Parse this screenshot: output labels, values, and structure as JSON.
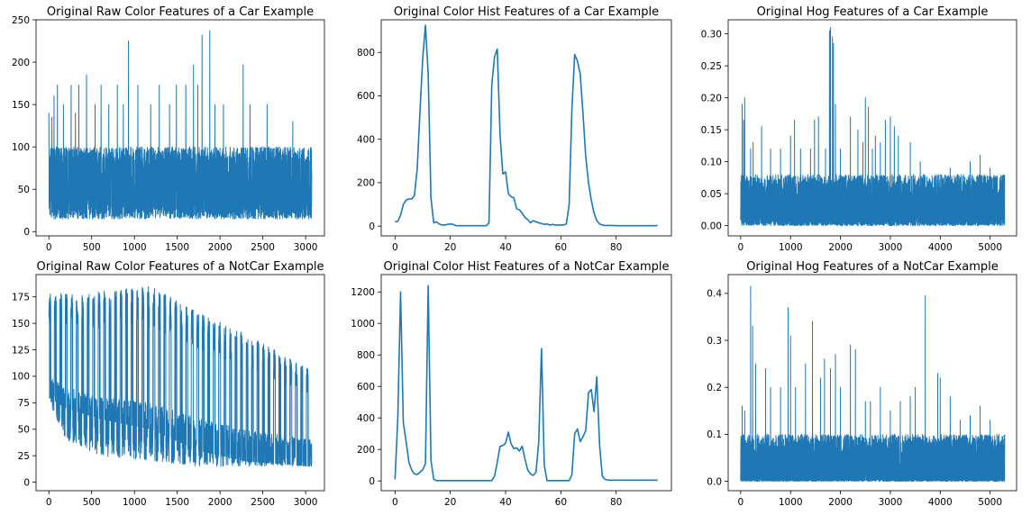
{
  "chart_data": [
    {
      "type": "line",
      "title": "Original Raw Color Features of a Car Example",
      "xlabel": "",
      "ylabel": "",
      "xlim": [
        -150,
        3220
      ],
      "ylim": [
        -5,
        250
      ],
      "xticks": [
        0,
        500,
        1000,
        1500,
        2000,
        2500,
        3000
      ],
      "yticks": [
        0,
        50,
        100,
        150,
        200,
        250
      ],
      "color": "#1f77b4",
      "profile": {
        "n": 3072,
        "base_low": [
          15,
          30
        ],
        "base_high": [
          80,
          100
        ],
        "mid": 58
      },
      "peaks": [
        [
          0,
          140
        ],
        [
          35,
          135
        ],
        [
          60,
          160
        ],
        [
          100,
          173
        ],
        [
          170,
          150
        ],
        [
          260,
          173
        ],
        [
          310,
          140
        ],
        [
          350,
          173
        ],
        [
          440,
          185
        ],
        [
          540,
          150
        ],
        [
          610,
          173
        ],
        [
          700,
          150
        ],
        [
          800,
          173
        ],
        [
          870,
          150
        ],
        [
          930,
          225
        ],
        [
          1040,
          173
        ],
        [
          1190,
          150
        ],
        [
          1290,
          173
        ],
        [
          1410,
          150
        ],
        [
          1490,
          173
        ],
        [
          1600,
          173
        ],
        [
          1690,
          197
        ],
        [
          1740,
          173
        ],
        [
          1790,
          232
        ],
        [
          1880,
          237
        ],
        [
          1940,
          150
        ],
        [
          2040,
          150
        ],
        [
          2270,
          197
        ],
        [
          2350,
          150
        ],
        [
          2550,
          150
        ],
        [
          2850,
          130
        ]
      ]
    },
    {
      "type": "line",
      "title": "Original Color Hist Features of a Car Example",
      "xlabel": "",
      "ylabel": "",
      "xlim": [
        -5,
        100
      ],
      "ylim": [
        -45,
        950
      ],
      "xticks": [
        0,
        20,
        40,
        60,
        80
      ],
      "yticks": [
        0,
        200,
        400,
        600,
        800
      ],
      "color": "#1f77b4",
      "x": [
        0,
        1,
        2,
        3,
        4,
        5,
        6,
        7,
        8,
        9,
        10,
        11,
        12,
        13,
        14,
        15,
        16,
        17,
        18,
        19,
        20,
        21,
        22,
        23,
        24,
        25,
        26,
        27,
        28,
        29,
        30,
        31,
        32,
        33,
        34,
        35,
        36,
        37,
        38,
        39,
        40,
        41,
        42,
        43,
        44,
        45,
        46,
        47,
        48,
        49,
        50,
        51,
        52,
        53,
        54,
        55,
        56,
        57,
        58,
        59,
        60,
        61,
        62,
        63,
        64,
        65,
        66,
        67,
        68,
        69,
        70,
        71,
        72,
        73,
        74,
        75,
        76,
        77,
        78,
        79,
        80,
        81,
        82,
        83,
        84,
        85,
        86,
        87,
        88,
        89,
        90,
        91,
        92,
        93,
        94,
        95
      ],
      "y": [
        20,
        22,
        50,
        100,
        120,
        125,
        125,
        140,
        260,
        520,
        770,
        925,
        700,
        130,
        15,
        20,
        10,
        5,
        5,
        8,
        10,
        8,
        2,
        2,
        2,
        2,
        2,
        2,
        2,
        2,
        2,
        2,
        2,
        2,
        15,
        650,
        780,
        815,
        420,
        240,
        250,
        150,
        135,
        130,
        80,
        75,
        60,
        40,
        30,
        15,
        25,
        20,
        15,
        12,
        8,
        10,
        5,
        8,
        5,
        5,
        5,
        5,
        10,
        100,
        540,
        790,
        760,
        700,
        520,
        320,
        200,
        120,
        60,
        25,
        10,
        5,
        3,
        3,
        3,
        3,
        2,
        2,
        2,
        2,
        2,
        2,
        2,
        2,
        2,
        2,
        2,
        2,
        2,
        2,
        2,
        3
      ]
    },
    {
      "type": "line",
      "title": "Original Hog Features of a Car Example",
      "xlabel": "",
      "ylabel": "",
      "xlim": [
        -250,
        5530
      ],
      "ylim": [
        -0.016,
        0.322
      ],
      "xticks": [
        0,
        1000,
        2000,
        3000,
        4000,
        5000
      ],
      "yticks": [
        0.0,
        0.05,
        0.1,
        0.15,
        0.2,
        0.25,
        0.3
      ],
      "color": "#1f77b4",
      "profile": {
        "n": 5292,
        "base_low": [
          0,
          0.01
        ],
        "base_high": [
          0.04,
          0.08
        ],
        "mid": 0.03
      },
      "peaks": [
        [
          30,
          0.19
        ],
        [
          60,
          0.165
        ],
        [
          80,
          0.2
        ],
        [
          200,
          0.12
        ],
        [
          250,
          0.13
        ],
        [
          420,
          0.155
        ],
        [
          600,
          0.12
        ],
        [
          800,
          0.12
        ],
        [
          1000,
          0.14
        ],
        [
          1080,
          0.165
        ],
        [
          1200,
          0.12
        ],
        [
          1400,
          0.12
        ],
        [
          1480,
          0.165
        ],
        [
          1560,
          0.17
        ],
        [
          1700,
          0.12
        ],
        [
          1780,
          0.305
        ],
        [
          1800,
          0.31
        ],
        [
          1840,
          0.295
        ],
        [
          1860,
          0.285
        ],
        [
          1900,
          0.19
        ],
        [
          2000,
          0.12
        ],
        [
          2200,
          0.17
        ],
        [
          2350,
          0.15
        ],
        [
          2450,
          0.13
        ],
        [
          2500,
          0.2
        ],
        [
          2560,
          0.185
        ],
        [
          2640,
          0.12
        ],
        [
          2700,
          0.14
        ],
        [
          2800,
          0.13
        ],
        [
          2900,
          0.165
        ],
        [
          3000,
          0.17
        ],
        [
          3080,
          0.155
        ],
        [
          3160,
          0.14
        ],
        [
          3400,
          0.13
        ],
        [
          3600,
          0.1
        ],
        [
          3800,
          0.07
        ],
        [
          4000,
          0.08
        ],
        [
          4200,
          0.09
        ],
        [
          4350,
          0.08
        ],
        [
          4600,
          0.1
        ],
        [
          4800,
          0.11
        ],
        [
          5000,
          0.09
        ],
        [
          5200,
          0.07
        ]
      ]
    },
    {
      "type": "line",
      "title": "Original Raw Color Features of a NotCar Example",
      "xlabel": "",
      "ylabel": "",
      "xlim": [
        -150,
        3220
      ],
      "ylim": [
        -8,
        196
      ],
      "xticks": [
        0,
        500,
        1000,
        1500,
        2000,
        2500,
        3000
      ],
      "yticks": [
        0,
        25,
        50,
        75,
        100,
        125,
        150,
        175
      ],
      "color": "#1f77b4",
      "profile": {
        "n": 3072,
        "period": 64,
        "segments": [
          [
            0,
            80,
            178,
            75,
            100
          ],
          [
            200,
            70,
            178,
            40,
            90
          ],
          [
            600,
            60,
            180,
            25,
            80
          ],
          [
            1200,
            50,
            185,
            20,
            75
          ],
          [
            1750,
            30,
            160,
            15,
            60
          ],
          [
            2300,
            20,
            140,
            15,
            50
          ],
          [
            3072,
            15,
            105,
            15,
            40
          ]
        ]
      }
    },
    {
      "type": "line",
      "title": "Original Color Hist Features of a NotCar Example",
      "xlabel": "",
      "ylabel": "",
      "xlim": [
        -5,
        100
      ],
      "ylim": [
        -62,
        1310
      ],
      "xticks": [
        0,
        20,
        40,
        60,
        80
      ],
      "yticks": [
        0,
        200,
        400,
        600,
        800,
        1000,
        1200
      ],
      "color": "#1f77b4",
      "x": [
        0,
        1,
        2,
        3,
        4,
        5,
        6,
        7,
        8,
        9,
        10,
        11,
        12,
        13,
        14,
        15,
        16,
        17,
        18,
        19,
        20,
        21,
        22,
        23,
        24,
        25,
        26,
        27,
        28,
        29,
        30,
        31,
        32,
        33,
        34,
        35,
        36,
        37,
        38,
        39,
        40,
        41,
        42,
        43,
        44,
        45,
        46,
        47,
        48,
        49,
        50,
        51,
        52,
        53,
        54,
        55,
        56,
        57,
        58,
        59,
        60,
        61,
        62,
        63,
        64,
        65,
        66,
        67,
        68,
        69,
        70,
        71,
        72,
        73,
        74,
        75,
        76,
        77,
        78,
        79,
        80,
        81,
        82,
        83,
        84,
        85,
        86,
        87,
        88,
        89,
        90,
        91,
        92,
        93,
        94,
        95
      ],
      "y": [
        10,
        400,
        1200,
        370,
        250,
        120,
        70,
        45,
        40,
        55,
        70,
        110,
        1240,
        130,
        10,
        2,
        2,
        2,
        2,
        2,
        2,
        2,
        2,
        2,
        2,
        2,
        2,
        2,
        2,
        2,
        2,
        2,
        2,
        2,
        2,
        2,
        30,
        120,
        220,
        225,
        240,
        310,
        235,
        205,
        210,
        190,
        220,
        140,
        70,
        45,
        35,
        55,
        250,
        840,
        100,
        2,
        2,
        2,
        2,
        2,
        2,
        2,
        2,
        2,
        40,
        300,
        330,
        250,
        280,
        320,
        560,
        580,
        440,
        660,
        230,
        30,
        10,
        5,
        5,
        5,
        5,
        5,
        5,
        5,
        5,
        5,
        5,
        5,
        5,
        5,
        5,
        5,
        5,
        5,
        5,
        5
      ]
    },
    {
      "type": "line",
      "title": "Original Hog Features of a NotCar Example",
      "xlabel": "",
      "ylabel": "",
      "xlim": [
        -250,
        5530
      ],
      "ylim": [
        -0.02,
        0.44
      ],
      "xticks": [
        0,
        1000,
        2000,
        3000,
        4000,
        5000
      ],
      "yticks": [
        0.0,
        0.1,
        0.2,
        0.3,
        0.4
      ],
      "color": "#1f77b4",
      "profile": {
        "n": 5292,
        "base_low": [
          0,
          0.005
        ],
        "base_high": [
          0.05,
          0.1
        ],
        "mid": 0.04
      },
      "peaks": [
        [
          30,
          0.16
        ],
        [
          80,
          0.15
        ],
        [
          200,
          0.415
        ],
        [
          240,
          0.33
        ],
        [
          300,
          0.25
        ],
        [
          500,
          0.24
        ],
        [
          600,
          0.2
        ],
        [
          800,
          0.2
        ],
        [
          950,
          0.37
        ],
        [
          1000,
          0.31
        ],
        [
          1100,
          0.2
        ],
        [
          1300,
          0.25
        ],
        [
          1440,
          0.34
        ],
        [
          1600,
          0.22
        ],
        [
          1680,
          0.26
        ],
        [
          1800,
          0.24
        ],
        [
          1900,
          0.27
        ],
        [
          2000,
          0.2
        ],
        [
          2200,
          0.29
        ],
        [
          2300,
          0.28
        ],
        [
          2500,
          0.17
        ],
        [
          2600,
          0.17
        ],
        [
          2800,
          0.2
        ],
        [
          3000,
          0.15
        ],
        [
          3200,
          0.17
        ],
        [
          3400,
          0.18
        ],
        [
          3500,
          0.2
        ],
        [
          3700,
          0.395
        ],
        [
          3950,
          0.23
        ],
        [
          4000,
          0.22
        ],
        [
          4200,
          0.18
        ],
        [
          4400,
          0.13
        ],
        [
          4600,
          0.14
        ],
        [
          4800,
          0.16
        ],
        [
          5000,
          0.13
        ],
        [
          5200,
          0.08
        ]
      ]
    }
  ]
}
